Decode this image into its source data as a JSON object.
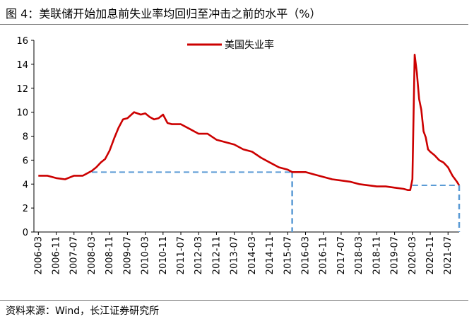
{
  "title": "图 4：美联储开始加息前失业率均回归至冲击之前的水平（%）",
  "source": "资料来源：Wind，长江证券研究所",
  "chart_data": {
    "type": "line",
    "title": "图 4：美联储开始加息前失业率均回归至冲击之前的水平（%）",
    "xlabel": "",
    "ylabel": "",
    "ylim": [
      0,
      16
    ],
    "yticks": [
      0,
      2,
      4,
      6,
      8,
      10,
      12,
      14,
      16
    ],
    "xtick_labels": [
      "2006-03",
      "2006-11",
      "2007-07",
      "2008-03",
      "2008-11",
      "2009-07",
      "2010-03",
      "2010-11",
      "2011-07",
      "2012-03",
      "2012-11",
      "2013-07",
      "2014-03",
      "2014-11",
      "2015-07",
      "2016-03",
      "2016-11",
      "2017-07",
      "2018-03",
      "2018-11",
      "2019-07",
      "2020-03",
      "2020-11",
      "2021-07"
    ],
    "legend": {
      "position": "top-center",
      "entries": [
        "美国失业率"
      ]
    },
    "grid": false,
    "colors": {
      "series": "#cc0000",
      "reference": "#5b9bd5"
    },
    "series": [
      {
        "name": "美国失业率",
        "x": [
          "2006-03",
          "2006-07",
          "2006-11",
          "2007-03",
          "2007-07",
          "2007-11",
          "2008-03",
          "2008-05",
          "2008-07",
          "2008-09",
          "2008-11",
          "2009-01",
          "2009-03",
          "2009-05",
          "2009-07",
          "2009-10",
          "2010-01",
          "2010-03",
          "2010-05",
          "2010-07",
          "2010-09",
          "2010-11",
          "2011-01",
          "2011-03",
          "2011-07",
          "2011-11",
          "2012-03",
          "2012-07",
          "2012-11",
          "2013-03",
          "2013-07",
          "2013-11",
          "2014-03",
          "2014-07",
          "2014-11",
          "2015-03",
          "2015-07",
          "2015-09",
          "2015-11",
          "2016-03",
          "2016-07",
          "2016-11",
          "2017-03",
          "2017-07",
          "2017-11",
          "2018-03",
          "2018-07",
          "2018-11",
          "2019-03",
          "2019-07",
          "2019-11",
          "2020-01",
          "2020-02",
          "2020-03",
          "2020-04",
          "2020-05",
          "2020-06",
          "2020-07",
          "2020-08",
          "2020-09",
          "2020-10",
          "2020-11",
          "2021-01",
          "2021-03",
          "2021-05",
          "2021-07",
          "2021-09",
          "2021-11",
          "2021-12"
        ],
        "values": [
          4.7,
          4.7,
          4.5,
          4.4,
          4.7,
          4.7,
          5.1,
          5.4,
          5.8,
          6.1,
          6.8,
          7.8,
          8.7,
          9.4,
          9.5,
          10.0,
          9.8,
          9.9,
          9.6,
          9.4,
          9.5,
          9.8,
          9.1,
          9.0,
          9.0,
          8.6,
          8.2,
          8.2,
          7.7,
          7.5,
          7.3,
          6.9,
          6.7,
          6.2,
          5.8,
          5.4,
          5.2,
          5.0,
          5.0,
          5.0,
          4.8,
          4.6,
          4.4,
          4.3,
          4.2,
          4.0,
          3.9,
          3.8,
          3.8,
          3.7,
          3.6,
          3.5,
          3.5,
          4.4,
          14.8,
          13.3,
          11.1,
          10.2,
          8.4,
          7.9,
          6.9,
          6.7,
          6.4,
          6.0,
          5.8,
          5.4,
          4.7,
          4.2,
          3.9
        ]
      }
    ],
    "reference_lines": [
      {
        "level": 5.0,
        "from": "2008-03",
        "to": "2015-09"
      },
      {
        "level": 3.9,
        "from": "2020-03",
        "to": "2021-12"
      }
    ]
  }
}
